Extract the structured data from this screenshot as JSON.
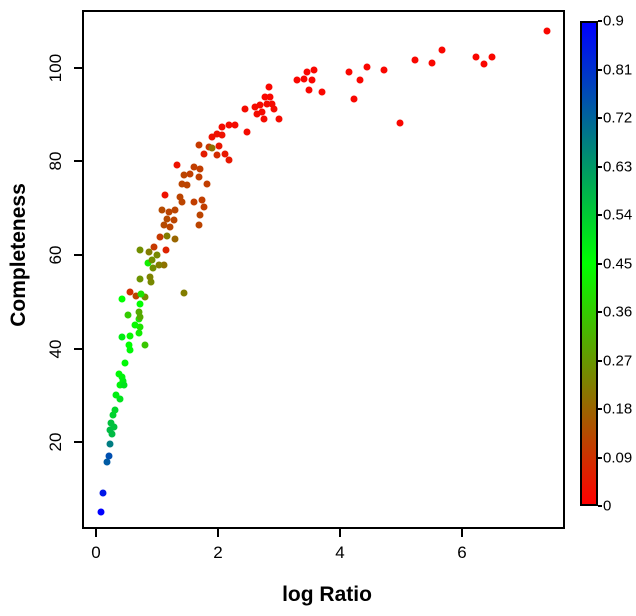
{
  "figure": {
    "background": "#ffffff",
    "frame_color": "#000000",
    "text_color": "#000000"
  },
  "chart_data": {
    "type": "scatter",
    "title": "",
    "xlabel": "log Ratio",
    "ylabel": "Completeness",
    "xlim": [
      -0.23,
      7.69
    ],
    "ylim": [
      1.4,
      112.4
    ],
    "x_ticks": [
      0,
      2,
      4,
      6
    ],
    "y_ticks": [
      20,
      40,
      60,
      80,
      100
    ],
    "grid": false,
    "legend_position": "right-colorbar",
    "colormap": {
      "min": 0,
      "max": 0.9,
      "stops": [
        {
          "value": 0.0,
          "color": "#ff0000"
        },
        {
          "value": 0.45,
          "color": "#00ff00"
        },
        {
          "value": 0.9,
          "color": "#0000ff"
        }
      ],
      "tick_values": [
        0.9,
        0.81,
        0.72,
        0.63,
        0.54,
        0.45,
        0.36,
        0.27,
        0.18,
        0.09,
        0
      ],
      "tick_labels": [
        "0.9",
        "0.81",
        "0.72",
        "0.63",
        "0.54",
        "0.45",
        "0.36",
        "0.27",
        "0.18",
        "0.09",
        "0"
      ]
    },
    "points_format": [
      "x",
      "y",
      "color_value"
    ],
    "points": [
      [
        0.05,
        5.5,
        0.9
      ],
      [
        0.08,
        9.5,
        0.86
      ],
      [
        0.15,
        16.2,
        0.74
      ],
      [
        0.18,
        17.4,
        0.76
      ],
      [
        0.2,
        20.0,
        0.68
      ],
      [
        0.23,
        22.1,
        0.57
      ],
      [
        0.2,
        23.0,
        0.57
      ],
      [
        0.26,
        23.6,
        0.56
      ],
      [
        0.21,
        24.5,
        0.56
      ],
      [
        0.25,
        26.2,
        0.53
      ],
      [
        0.28,
        27.3,
        0.52
      ],
      [
        0.36,
        29.6,
        0.5
      ],
      [
        0.3,
        30.5,
        0.48
      ],
      [
        0.36,
        32.6,
        0.47
      ],
      [
        0.34,
        35.0,
        0.46
      ],
      [
        0.39,
        34.3,
        0.47
      ],
      [
        0.41,
        33.5,
        0.48
      ],
      [
        0.43,
        32.6,
        0.5
      ],
      [
        0.44,
        37.3,
        0.46
      ],
      [
        0.52,
        40.1,
        0.46
      ],
      [
        0.51,
        41.2,
        0.45
      ],
      [
        0.77,
        41.2,
        0.35
      ],
      [
        0.39,
        42.9,
        0.48
      ],
      [
        0.52,
        43.1,
        0.44
      ],
      [
        0.67,
        43.7,
        0.42
      ],
      [
        0.69,
        45.0,
        0.4
      ],
      [
        0.61,
        45.5,
        0.44
      ],
      [
        0.67,
        46.7,
        0.42
      ],
      [
        0.49,
        47.6,
        0.36
      ],
      [
        0.67,
        48.2,
        0.3
      ],
      [
        0.69,
        47.2,
        0.3
      ],
      [
        0.69,
        50.0,
        0.45
      ],
      [
        0.39,
        51.0,
        0.45
      ],
      [
        0.77,
        51.4,
        0.24
      ],
      [
        0.62,
        51.7,
        0.12
      ],
      [
        0.7,
        52.1,
        0.4
      ],
      [
        0.52,
        52.5,
        0.08
      ],
      [
        1.41,
        52.3,
        0.22
      ],
      [
        0.87,
        54.7,
        0.24
      ],
      [
        0.69,
        55.3,
        0.26
      ],
      [
        0.85,
        55.7,
        0.23
      ],
      [
        0.9,
        57.6,
        0.25
      ],
      [
        1.08,
        58.3,
        0.2
      ],
      [
        1.0,
        58.3,
        0.22
      ],
      [
        0.82,
        58.7,
        0.42
      ],
      [
        0.89,
        59.4,
        0.25
      ],
      [
        0.97,
        60.4,
        0.24
      ],
      [
        1.11,
        61.5,
        0.06
      ],
      [
        0.84,
        61.1,
        0.22
      ],
      [
        0.69,
        61.5,
        0.25
      ],
      [
        0.92,
        62.1,
        0.1
      ],
      [
        1.26,
        63.9,
        0.18
      ],
      [
        1.13,
        64.5,
        0.22
      ],
      [
        1.02,
        64.3,
        0.1
      ],
      [
        1.08,
        66.8,
        0.13
      ],
      [
        1.18,
        66.4,
        0.12
      ],
      [
        1.66,
        66.8,
        0.12
      ],
      [
        1.13,
        68.1,
        0.13
      ],
      [
        1.25,
        67.9,
        0.12
      ],
      [
        1.67,
        69.0,
        0.12
      ],
      [
        1.05,
        70.1,
        0.13
      ],
      [
        1.16,
        69.6,
        0.12
      ],
      [
        1.26,
        70.1,
        0.12
      ],
      [
        1.74,
        70.7,
        0.11
      ],
      [
        1.34,
        72.8,
        0.12
      ],
      [
        1.38,
        71.8,
        0.12
      ],
      [
        1.57,
        71.8,
        0.11
      ],
      [
        1.7,
        72.2,
        0.11
      ],
      [
        1.1,
        73.3,
        0.03
      ],
      [
        1.79,
        75.6,
        0.11
      ],
      [
        1.38,
        75.6,
        0.12
      ],
      [
        1.46,
        75.4,
        0.12
      ],
      [
        1.51,
        77.8,
        0.11
      ],
      [
        1.41,
        77.5,
        0.12
      ],
      [
        1.66,
        77.1,
        0.11
      ],
      [
        1.3,
        79.7,
        0.03
      ],
      [
        1.57,
        79.3,
        0.11
      ],
      [
        1.67,
        78.8,
        0.11
      ],
      [
        1.66,
        84.0,
        0.1
      ],
      [
        1.82,
        83.5,
        0.1
      ],
      [
        1.87,
        83.3,
        0.2
      ],
      [
        1.98,
        83.7,
        0.04
      ],
      [
        1.74,
        82.0,
        0.05
      ],
      [
        1.95,
        81.8,
        0.08
      ],
      [
        2.08,
        82.0,
        0.04
      ],
      [
        2.15,
        80.7,
        0.04
      ],
      [
        1.87,
        85.7,
        0.03
      ],
      [
        1.95,
        86.3,
        0.03
      ],
      [
        2.03,
        86.1,
        0.03
      ],
      [
        2.03,
        87.8,
        0.02
      ],
      [
        2.15,
        88.2,
        0.02
      ],
      [
        2.25,
        88.2,
        0.02
      ],
      [
        2.44,
        86.7,
        0.02
      ],
      [
        2.41,
        91.7,
        0.02
      ],
      [
        2.57,
        92.1,
        0.02
      ],
      [
        2.66,
        92.5,
        0.02
      ],
      [
        2.61,
        90.6,
        0.02
      ],
      [
        2.69,
        91.0,
        0.02
      ],
      [
        2.72,
        89.5,
        0.02
      ],
      [
        2.8,
        96.4,
        0.01
      ],
      [
        2.82,
        94.2,
        0.01
      ],
      [
        2.85,
        92.7,
        0.02
      ],
      [
        2.89,
        91.7,
        0.02
      ],
      [
        2.77,
        92.7,
        0.02
      ],
      [
        2.74,
        94.2,
        0.01
      ],
      [
        2.97,
        89.5,
        0.02
      ],
      [
        3.26,
        97.9,
        0.01
      ],
      [
        3.38,
        98.1,
        0.01
      ],
      [
        3.43,
        99.6,
        0.01
      ],
      [
        3.54,
        100.0,
        0.01
      ],
      [
        3.51,
        97.9,
        0.01
      ],
      [
        3.46,
        95.7,
        0.01
      ],
      [
        3.67,
        95.3,
        0.01
      ],
      [
        4.11,
        99.6,
        0.01
      ],
      [
        4.3,
        97.9,
        0.01
      ],
      [
        4.41,
        100.6,
        0.01
      ],
      [
        4.69,
        100.0,
        0.01
      ],
      [
        4.2,
        93.8,
        0.01
      ],
      [
        4.95,
        88.7,
        0.01
      ],
      [
        5.2,
        102.1,
        0.01
      ],
      [
        5.48,
        101.5,
        0.01
      ],
      [
        5.64,
        104.3,
        0.01
      ],
      [
        6.2,
        102.8,
        0.01
      ],
      [
        6.33,
        101.3,
        0.01
      ],
      [
        6.46,
        102.8,
        0.01
      ],
      [
        7.36,
        108.3,
        0.01
      ]
    ]
  }
}
